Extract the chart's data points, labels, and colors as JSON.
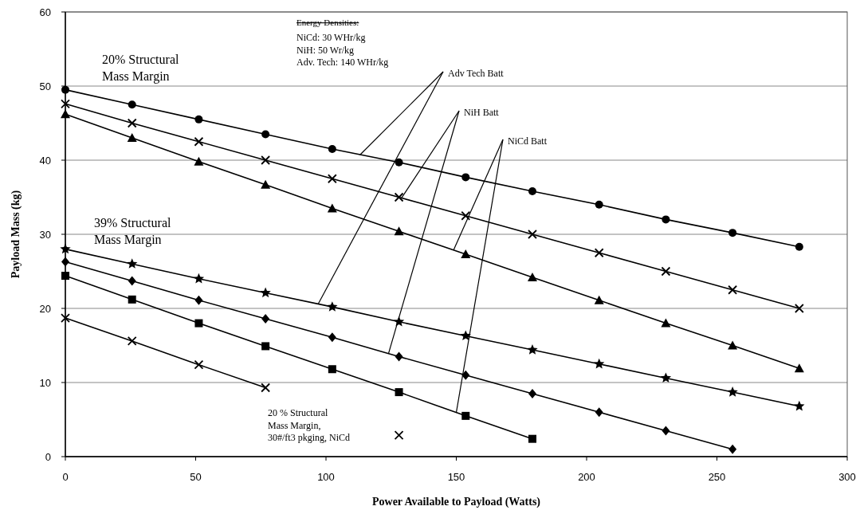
{
  "chart_data": {
    "type": "line",
    "xlabel": "Power Available to Payload (Watts)",
    "ylabel": "Payload Mass (kg)",
    "xlim": [
      0,
      300
    ],
    "xticks": [
      0,
      50,
      100,
      150,
      200,
      250,
      300
    ],
    "ylim": [
      0,
      60
    ],
    "yticks": [
      0,
      10,
      20,
      30,
      40,
      50,
      60
    ],
    "grid": "y",
    "line_style": "solid",
    "x": [
      0,
      25.6,
      51.2,
      76.8,
      102.4,
      128,
      153.6,
      179.2,
      204.8,
      230.4,
      256,
      281.6
    ],
    "series": [
      {
        "color": "#000000",
        "marker": "circle",
        "values": [
          49.5,
          47.5,
          45.5,
          43.5,
          41.5,
          39.7,
          37.7,
          35.8,
          34,
          32,
          30.2,
          28.3
        ]
      },
      {
        "color": "#000000",
        "marker": "cross",
        "values": [
          47.6,
          45,
          42.5,
          40,
          37.5,
          35,
          32.5,
          30,
          27.5,
          25,
          22.5,
          20
        ]
      },
      {
        "color": "#000000",
        "marker": "triangle",
        "values": [
          46.2,
          43,
          39.8,
          36.7,
          33.5,
          30.4,
          27.3,
          24.2,
          21.1,
          18,
          15,
          11.9
        ]
      },
      {
        "color": "#000000",
        "marker": "star",
        "values": [
          28,
          26,
          24,
          22.1,
          20.2,
          18.2,
          16.3,
          14.4,
          12.5,
          10.6,
          8.7,
          6.8
        ]
      },
      {
        "color": "#000000",
        "marker": "diamond",
        "values": [
          26.3,
          23.7,
          21.1,
          18.6,
          16.1,
          13.5,
          11,
          8.5,
          6,
          3.5,
          1,
          null
        ]
      },
      {
        "color": "#000000",
        "marker": "square",
        "values": [
          24.4,
          21.2,
          18,
          14.9,
          11.8,
          8.7,
          5.5,
          2.4,
          null,
          null,
          null,
          null
        ]
      },
      {
        "color": "#000000",
        "marker": "cross",
        "values": [
          18.7,
          15.6,
          12.4,
          9.3,
          null,
          2.9,
          null,
          null,
          null,
          null,
          null,
          null
        ]
      }
    ],
    "annotations": [
      "Energy Densities:",
      "NiCd:  30 WHr/kg\nNiH: 50 Wr/kg\nAdv. Tech: 140 WHr/kg",
      "20% Structural\nMass Margin",
      "39% Structural\nMass Margin",
      "20 % Structural\nMass Margin,\n30#/ft3 pkging, NiCd",
      {
        "text": "Adv Tech Batt",
        "x": 113,
        "y": 40.7
      },
      {
        "text": "NiH Batt",
        "x": 129,
        "y": 34.9
      },
      {
        "text": "NiCd Batt",
        "x": 149,
        "y": 27.9
      }
    ]
  }
}
